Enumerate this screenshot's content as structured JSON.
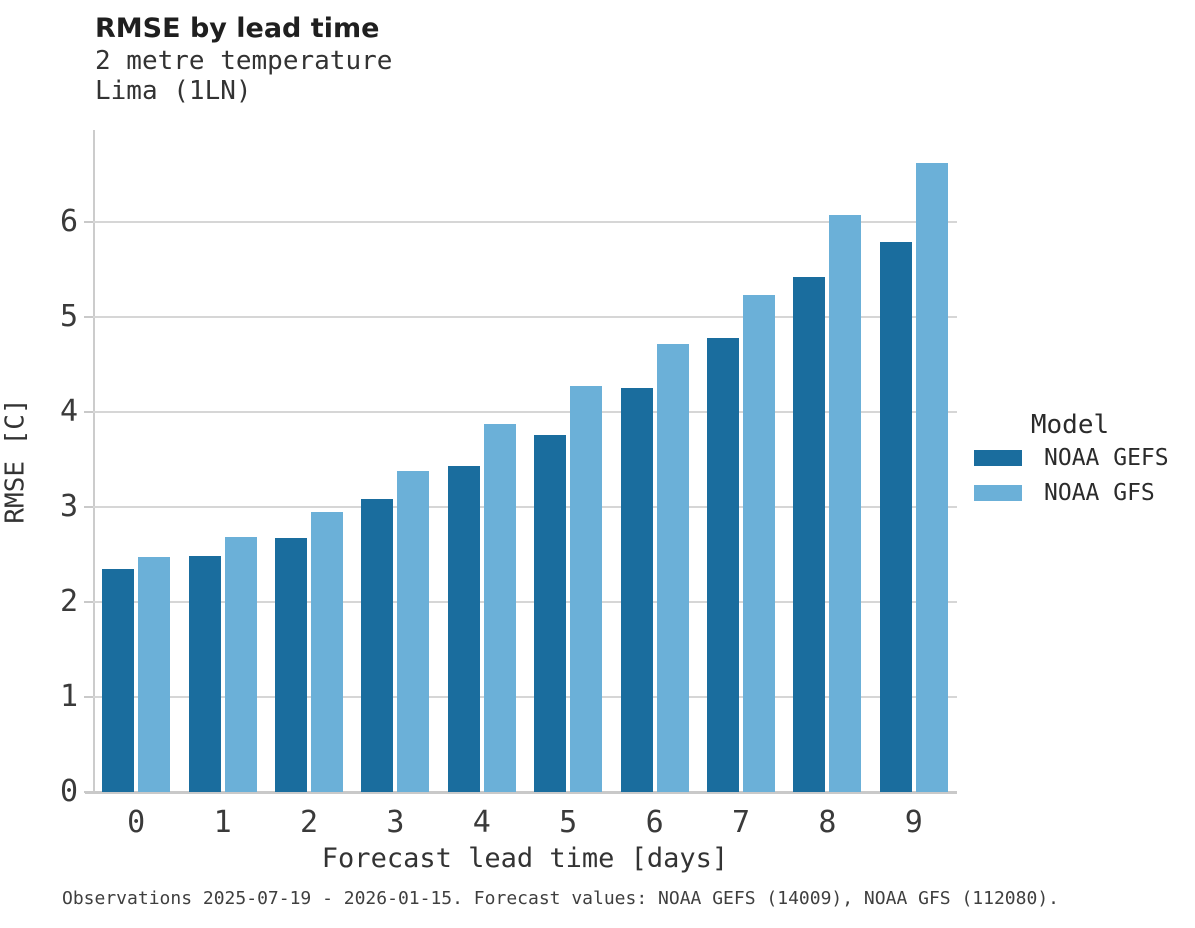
{
  "header": {
    "title": "RMSE by lead time",
    "subtitle_line1": "2 metre temperature",
    "subtitle_line2": "Lima (1LN)"
  },
  "chart_data": {
    "type": "bar",
    "title": "RMSE by lead time",
    "subtitle": [
      "2 metre temperature",
      "Lima (1LN)"
    ],
    "categories": [
      "0",
      "1",
      "2",
      "3",
      "4",
      "5",
      "6",
      "7",
      "8",
      "9"
    ],
    "series": [
      {
        "name": "NOAA GEFS",
        "color": "#1a6d9e",
        "values": [
          2.35,
          2.49,
          2.67,
          3.09,
          3.43,
          3.76,
          4.25,
          4.78,
          5.42,
          5.79
        ]
      },
      {
        "name": "NOAA GFS",
        "color": "#6bb0d8",
        "values": [
          2.47,
          2.68,
          2.95,
          3.38,
          3.87,
          4.27,
          4.72,
          5.23,
          6.08,
          6.62
        ]
      }
    ],
    "xlabel": "Forecast lead time [days]",
    "ylabel": "RMSE [C]",
    "ylim": [
      0,
      6.97
    ],
    "yticks": [
      0,
      1,
      2,
      3,
      4,
      5,
      6
    ],
    "grid": "horizontal gridlines at integer y values",
    "legend_title": "Model",
    "legend_position": "right of plot"
  },
  "legend": {
    "title": "Model",
    "items": [
      {
        "label": "NOAA GEFS",
        "color": "#1a6d9e"
      },
      {
        "label": "NOAA GFS",
        "color": "#6bb0d8"
      }
    ]
  },
  "footer": {
    "text": "Observations 2025-07-19 - 2026-01-15. Forecast values: NOAA GEFS (14009), NOAA GFS (112080)."
  },
  "colors": {
    "series_dark": "#1a6d9e",
    "series_light": "#6bb0d8",
    "gridline": "#d6d6d6",
    "axis": "#c9c9c9",
    "title_text": "#1f1f1f",
    "subtitle_text": "#333333",
    "tick_text": "#3a3a3a",
    "footer_text": "#3f3f3f"
  }
}
